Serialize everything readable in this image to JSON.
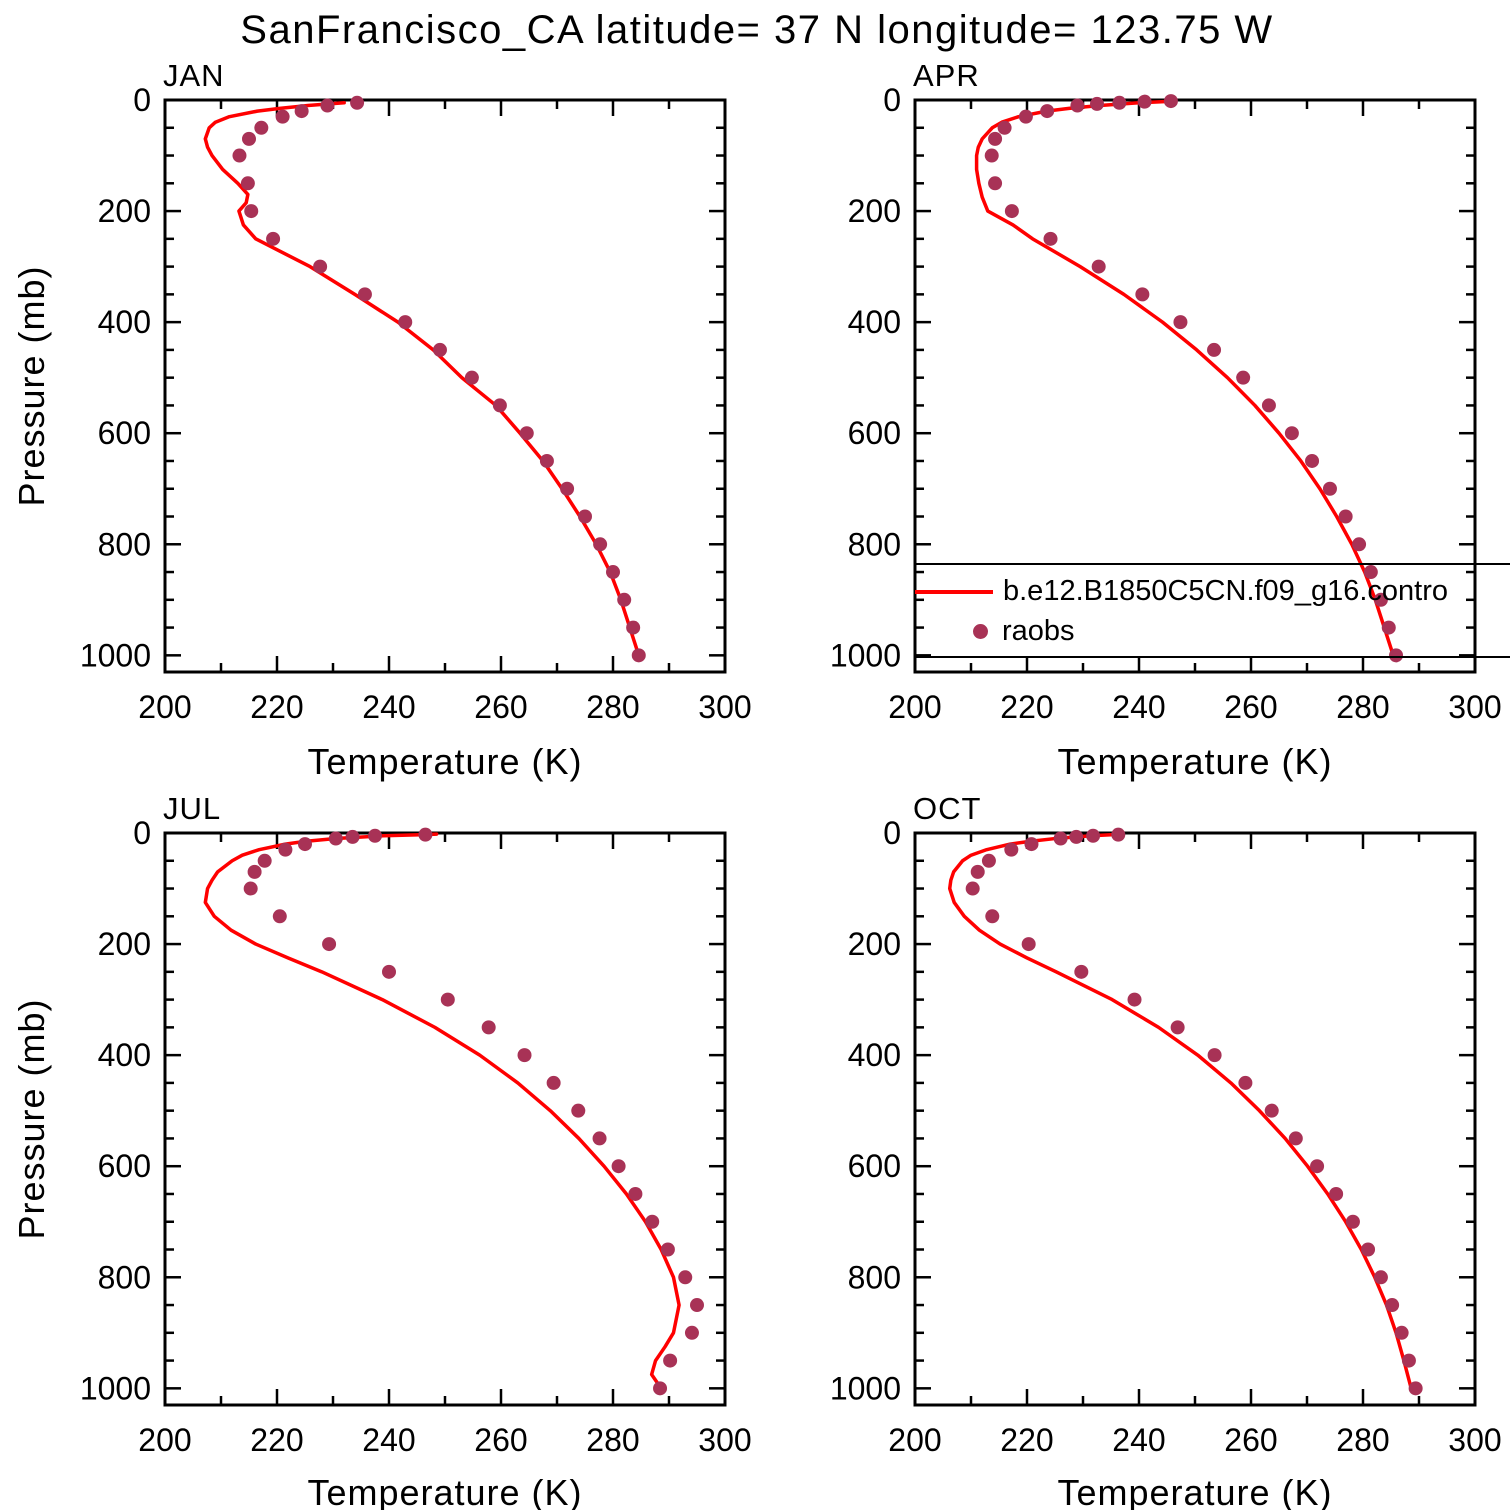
{
  "page": {
    "title": "SanFrancisco_CA  latitude= 37 N longitude= 123.75 W"
  },
  "colors": {
    "model_line": "#FF0000",
    "raobs_dot": "#A83256",
    "axis": "#000000",
    "background": "#FFFFFF"
  },
  "legend": {
    "position": "inside APR panel, lower area, box lines extend to right page edge",
    "entries": [
      {
        "label": "b.e12.B1850C5CN.f09_g16.contro",
        "marker": "line",
        "color": "#FF0000"
      },
      {
        "label": "raobs",
        "marker": "dot",
        "color": "#A83256"
      }
    ]
  },
  "chart_data": [
    {
      "type": "line",
      "title": "JAN",
      "xlabel": "Temperature (K)",
      "ylabel": "Pressure (mb)",
      "xlim": [
        200,
        300
      ],
      "xticks": [
        200,
        220,
        240,
        260,
        280,
        300
      ],
      "xminor_step": 10,
      "ylim": [
        0,
        1030
      ],
      "yticks": [
        0,
        200,
        400,
        600,
        800,
        1000
      ],
      "yminor_step": 50,
      "yaxis_inverted": true,
      "grid": false,
      "series": [
        {
          "name": "b.e12.B1850C5CN.f09_g16.contro",
          "type": "line",
          "color": "#FF0000",
          "pressure_mb": [
            1000,
            950,
            900,
            850,
            800,
            750,
            700,
            650,
            600,
            550,
            500,
            450,
            400,
            350,
            300,
            250,
            225,
            200,
            185,
            170,
            150,
            125,
            100,
            85,
            70,
            50,
            40,
            30,
            20,
            15,
            10,
            5
          ],
          "temperature_k": [
            284.6,
            283.0,
            281.4,
            279.5,
            277.0,
            274.1,
            270.9,
            267.5,
            263.4,
            259.1,
            253.0,
            247.9,
            241.6,
            233.9,
            225.9,
            216.2,
            214.0,
            213.2,
            214.5,
            214.8,
            213.0,
            210.3,
            208.4,
            207.6,
            207.2,
            207.9,
            209.0,
            211.5,
            216.5,
            220.5,
            225.5,
            232.0
          ]
        },
        {
          "name": "raobs",
          "type": "scatter",
          "color": "#A83256",
          "pressure_mb": [
            1000,
            950,
            900,
            850,
            800,
            750,
            700,
            650,
            600,
            550,
            500,
            450,
            400,
            350,
            300,
            250,
            200,
            150,
            100,
            70,
            50,
            30,
            20,
            10,
            5
          ],
          "temperature_k": [
            284.6,
            283.6,
            282.0,
            280.0,
            277.7,
            275.0,
            271.8,
            268.2,
            264.6,
            259.8,
            254.8,
            249.1,
            242.9,
            235.7,
            227.7,
            219.3,
            215.4,
            214.8,
            213.3,
            215.0,
            217.2,
            221.0,
            224.4,
            229.0,
            234.3
          ]
        }
      ]
    },
    {
      "type": "line",
      "title": "APR",
      "xlabel": "Temperature (K)",
      "ylabel": "Pressure (mb)",
      "xlim": [
        200,
        300
      ],
      "xticks": [
        200,
        220,
        240,
        260,
        280,
        300
      ],
      "xminor_step": 10,
      "ylim": [
        0,
        1030
      ],
      "yticks": [
        0,
        200,
        400,
        600,
        800,
        1000
      ],
      "yminor_step": 50,
      "yaxis_inverted": true,
      "grid": false,
      "series": [
        {
          "name": "b.e12.B1850C5CN.f09_g16.contro",
          "type": "line",
          "color": "#FF0000",
          "pressure_mb": [
            1000,
            950,
            900,
            850,
            800,
            750,
            700,
            650,
            600,
            550,
            500,
            450,
            400,
            350,
            300,
            250,
            225,
            200,
            175,
            150,
            125,
            100,
            85,
            70,
            50,
            40,
            30,
            20,
            15,
            10,
            5,
            3
          ],
          "temperature_k": [
            285.4,
            283.8,
            282.2,
            280.3,
            278.0,
            275.3,
            272.3,
            268.9,
            265.0,
            260.7,
            255.8,
            250.3,
            244.2,
            237.3,
            229.5,
            221.0,
            217.5,
            213.0,
            212.0,
            211.4,
            211.0,
            211.0,
            211.3,
            212.0,
            213.8,
            215.5,
            218.5,
            223.5,
            227.5,
            233.0,
            240.0,
            244.5
          ]
        },
        {
          "name": "raobs",
          "type": "scatter",
          "color": "#A83256",
          "pressure_mb": [
            1000,
            950,
            900,
            850,
            800,
            750,
            700,
            650,
            600,
            550,
            500,
            450,
            400,
            350,
            300,
            250,
            200,
            150,
            100,
            70,
            50,
            30,
            20,
            10,
            7,
            5,
            3,
            2
          ],
          "temperature_k": [
            285.9,
            284.6,
            283.2,
            281.4,
            279.3,
            276.9,
            274.1,
            270.9,
            267.3,
            263.2,
            258.6,
            253.4,
            247.4,
            240.6,
            232.8,
            224.2,
            217.3,
            214.3,
            213.7,
            214.3,
            216.0,
            219.8,
            223.6,
            229.0,
            232.5,
            236.5,
            241.0,
            245.7
          ]
        }
      ]
    },
    {
      "type": "line",
      "title": "JUL",
      "xlabel": "Temperature (K)",
      "ylabel": "Pressure (mb)",
      "xlim": [
        200,
        300
      ],
      "xticks": [
        200,
        220,
        240,
        260,
        280,
        300
      ],
      "xminor_step": 10,
      "ylim": [
        0,
        1030
      ],
      "yticks": [
        0,
        200,
        400,
        600,
        800,
        1000
      ],
      "yminor_step": 50,
      "yaxis_inverted": true,
      "grid": false,
      "series": [
        {
          "name": "b.e12.B1850C5CN.f09_g16.contro",
          "type": "line",
          "color": "#FF0000",
          "pressure_mb": [
            1000,
            975,
            950,
            925,
            900,
            850,
            800,
            750,
            700,
            650,
            600,
            550,
            500,
            450,
            400,
            350,
            300,
            250,
            225,
            200,
            175,
            150,
            125,
            100,
            85,
            70,
            50,
            40,
            30,
            20,
            15,
            10,
            5,
            3,
            2
          ],
          "temperature_k": [
            288.6,
            286.9,
            287.6,
            289.3,
            290.8,
            291.8,
            290.8,
            288.6,
            285.8,
            282.4,
            278.4,
            273.9,
            268.8,
            263.0,
            256.2,
            248.2,
            238.8,
            228.0,
            222.0,
            216.2,
            211.8,
            208.8,
            207.2,
            207.6,
            208.4,
            209.4,
            212.0,
            213.8,
            216.8,
            221.5,
            225.0,
            230.5,
            239.0,
            246.5,
            248.5
          ]
        },
        {
          "name": "raobs",
          "type": "scatter",
          "color": "#A83256",
          "pressure_mb": [
            1000,
            950,
            900,
            850,
            800,
            750,
            700,
            650,
            600,
            550,
            500,
            450,
            400,
            350,
            300,
            250,
            200,
            150,
            100,
            70,
            50,
            30,
            20,
            10,
            7,
            5,
            3
          ],
          "temperature_k": [
            288.4,
            290.2,
            294.1,
            295.0,
            292.9,
            289.8,
            287.0,
            284.0,
            281.0,
            277.6,
            273.8,
            269.4,
            264.2,
            257.8,
            250.5,
            240.0,
            229.3,
            220.5,
            215.3,
            216.0,
            217.8,
            221.5,
            225.0,
            230.5,
            233.5,
            237.5,
            246.5
          ]
        }
      ]
    },
    {
      "type": "line",
      "title": "OCT",
      "xlabel": "Temperature (K)",
      "ylabel": "Pressure (mb)",
      "xlim": [
        200,
        300
      ],
      "xticks": [
        200,
        220,
        240,
        260,
        280,
        300
      ],
      "xminor_step": 10,
      "ylim": [
        0,
        1030
      ],
      "yticks": [
        0,
        200,
        400,
        600,
        800,
        1000
      ],
      "yminor_step": 50,
      "yaxis_inverted": true,
      "grid": false,
      "series": [
        {
          "name": "b.e12.B1850C5CN.f09_g16.contro",
          "type": "line",
          "color": "#FF0000",
          "pressure_mb": [
            1000,
            950,
            900,
            850,
            800,
            750,
            700,
            650,
            600,
            550,
            500,
            450,
            400,
            350,
            300,
            250,
            225,
            200,
            175,
            150,
            125,
            100,
            85,
            70,
            50,
            40,
            30,
            20,
            15,
            10,
            5,
            3,
            2
          ],
          "temperature_k": [
            288.6,
            287.3,
            285.9,
            284.2,
            282.1,
            279.7,
            276.9,
            273.7,
            270.1,
            266.1,
            261.5,
            256.4,
            250.5,
            243.5,
            235.2,
            225.2,
            220.0,
            215.2,
            211.5,
            208.8,
            207.0,
            206.2,
            206.4,
            206.9,
            208.5,
            210.0,
            212.8,
            217.0,
            220.5,
            225.0,
            231.5,
            235.5,
            237.0
          ]
        },
        {
          "name": "raobs",
          "type": "scatter",
          "color": "#A83256",
          "pressure_mb": [
            1000,
            950,
            900,
            850,
            800,
            750,
            700,
            650,
            600,
            550,
            500,
            450,
            400,
            350,
            300,
            250,
            200,
            150,
            100,
            70,
            50,
            30,
            20,
            10,
            7,
            5,
            3
          ],
          "temperature_k": [
            289.4,
            288.2,
            286.9,
            285.2,
            283.2,
            280.9,
            278.2,
            275.2,
            271.8,
            268.0,
            263.7,
            259.0,
            253.5,
            246.9,
            239.2,
            229.7,
            220.3,
            213.8,
            210.3,
            211.2,
            213.2,
            217.2,
            220.8,
            226.0,
            228.8,
            231.8,
            236.3
          ]
        }
      ]
    }
  ]
}
